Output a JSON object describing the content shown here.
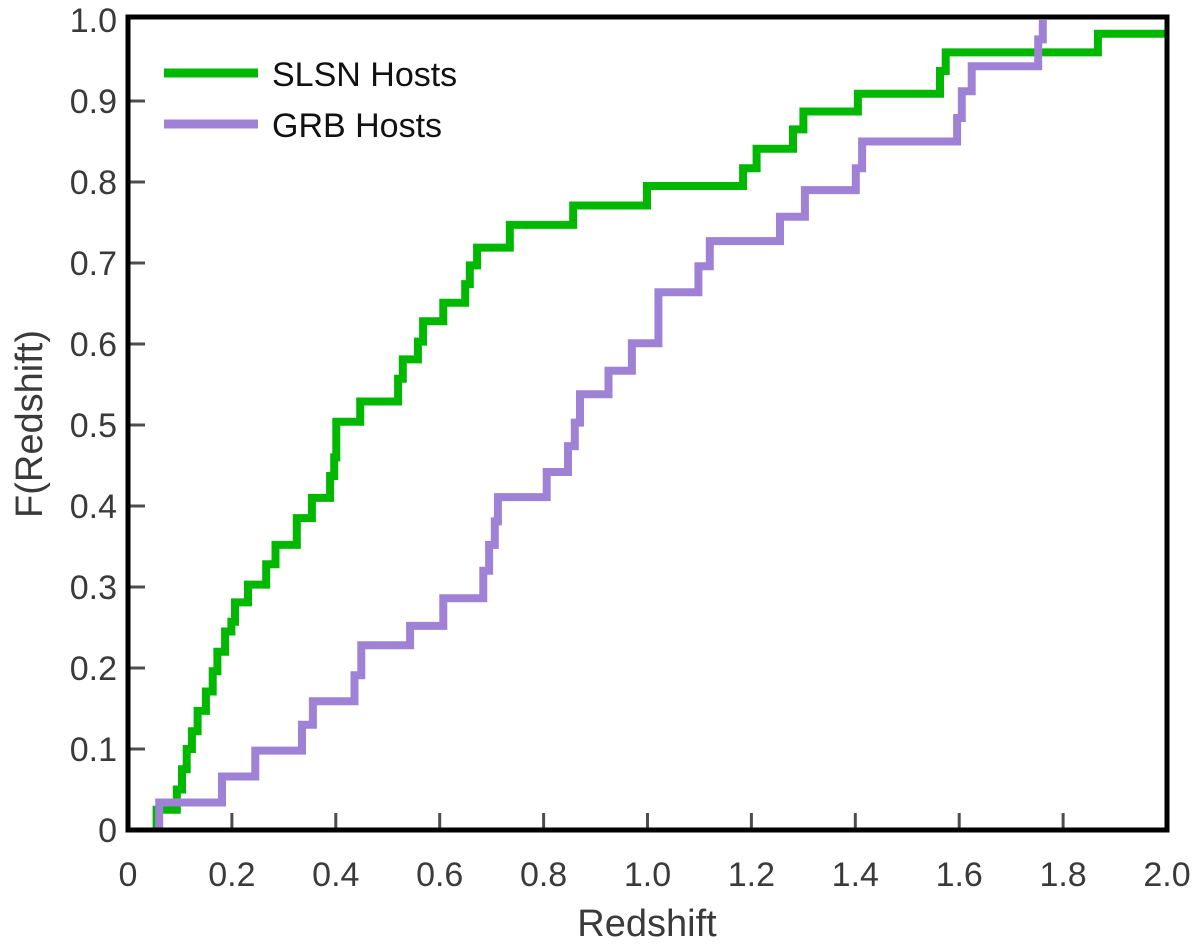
{
  "figure": {
    "kind": "empirical CDF comparison plot",
    "background": "#ffffff"
  },
  "chart_data": {
    "type": "line",
    "subtype": "empirical-cdf-step",
    "title": "",
    "xlabel": "Redshift",
    "ylabel": "F(Redshift)",
    "xlim": [
      0,
      2.0
    ],
    "ylim": [
      0,
      1.0
    ],
    "grid": false,
    "legend_position": "upper-left",
    "x_ticks": [
      0,
      0.2,
      0.4,
      0.6,
      0.8,
      1.0,
      1.2,
      1.4,
      1.6,
      1.8,
      2.0
    ],
    "x_tick_labels": [
      "0",
      "0.2",
      "0.4",
      "0.6",
      "0.8",
      "1.0",
      "1.2",
      "1.4",
      "1.6",
      "1.8",
      "2.0"
    ],
    "y_ticks": [
      0,
      0.1,
      0.2,
      0.3,
      0.4,
      0.5,
      0.6,
      0.7,
      0.8,
      0.9,
      1.0
    ],
    "y_tick_labels": [
      "0",
      "0.1",
      "0.2",
      "0.3",
      "0.4",
      "0.5",
      "0.6",
      "0.7",
      "0.8",
      "0.9",
      "1.0"
    ],
    "series": [
      {
        "name": "SLSN Hosts",
        "color": "#00b800",
        "line_width": 8,
        "start_x": 0.055,
        "end_x": 2.0,
        "steps": [
          [
            0.055,
            0.025
          ],
          [
            0.094,
            0.05
          ],
          [
            0.104,
            0.075
          ],
          [
            0.113,
            0.1
          ],
          [
            0.123,
            0.122
          ],
          [
            0.134,
            0.147
          ],
          [
            0.15,
            0.171
          ],
          [
            0.163,
            0.196
          ],
          [
            0.172,
            0.22
          ],
          [
            0.187,
            0.245
          ],
          [
            0.199,
            0.257
          ],
          [
            0.206,
            0.281
          ],
          [
            0.231,
            0.303
          ],
          [
            0.266,
            0.328
          ],
          [
            0.284,
            0.352
          ],
          [
            0.325,
            0.385
          ],
          [
            0.354,
            0.41
          ],
          [
            0.389,
            0.437
          ],
          [
            0.397,
            0.46
          ],
          [
            0.401,
            0.504
          ],
          [
            0.447,
            0.529
          ],
          [
            0.52,
            0.557
          ],
          [
            0.529,
            0.581
          ],
          [
            0.558,
            0.603
          ],
          [
            0.568,
            0.628
          ],
          [
            0.607,
            0.651
          ],
          [
            0.649,
            0.674
          ],
          [
            0.658,
            0.697
          ],
          [
            0.672,
            0.719
          ],
          [
            0.735,
            0.747
          ],
          [
            0.857,
            0.771
          ],
          [
            0.999,
            0.795
          ],
          [
            1.184,
            0.817
          ],
          [
            1.21,
            0.841
          ],
          [
            1.28,
            0.865
          ],
          [
            1.3,
            0.887
          ],
          [
            1.405,
            0.909
          ],
          [
            1.563,
            0.937
          ],
          [
            1.574,
            0.96
          ],
          [
            1.867,
            0.983
          ]
        ]
      },
      {
        "name": "GRB Hosts",
        "color": "#9f82d6",
        "line_width": 8,
        "start_x": 0.06,
        "end_x": null,
        "steps": [
          [
            0.06,
            0.034
          ],
          [
            0.181,
            0.066
          ],
          [
            0.245,
            0.098
          ],
          [
            0.335,
            0.13
          ],
          [
            0.356,
            0.159
          ],
          [
            0.436,
            0.191
          ],
          [
            0.449,
            0.228
          ],
          [
            0.543,
            0.252
          ],
          [
            0.607,
            0.286
          ],
          [
            0.684,
            0.32
          ],
          [
            0.695,
            0.352
          ],
          [
            0.706,
            0.381
          ],
          [
            0.712,
            0.411
          ],
          [
            0.806,
            0.442
          ],
          [
            0.847,
            0.474
          ],
          [
            0.86,
            0.503
          ],
          [
            0.87,
            0.538
          ],
          [
            0.925,
            0.567
          ],
          [
            0.97,
            0.601
          ],
          [
            1.021,
            0.664
          ],
          [
            1.098,
            0.696
          ],
          [
            1.12,
            0.727
          ],
          [
            1.255,
            0.757
          ],
          [
            1.303,
            0.79
          ],
          [
            1.401,
            0.817
          ],
          [
            1.413,
            0.85
          ],
          [
            1.596,
            0.879
          ],
          [
            1.605,
            0.912
          ],
          [
            1.624,
            0.943
          ],
          [
            1.752,
            0.976
          ],
          [
            1.761,
            1.0
          ]
        ]
      }
    ]
  },
  "colors": {
    "frame": "#000000",
    "tick": "#4d4d4d",
    "text": "#3a3a3a",
    "slsn_green": "#00b800",
    "grb_purple": "#9f82d6"
  }
}
